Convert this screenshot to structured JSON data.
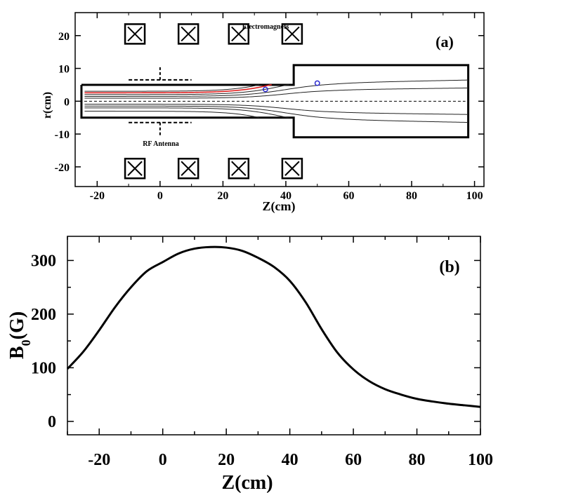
{
  "chart_data": [
    {
      "panel_label": "(a)",
      "type": "diagram",
      "xlabel": "Z(cm)",
      "ylabel": "r(cm)",
      "xlim": [
        -27,
        103
      ],
      "ylim": [
        -26,
        27
      ],
      "xticks": [
        -20,
        0,
        20,
        40,
        60,
        80,
        100
      ],
      "xtick_labels": [
        "-20",
        "0",
        "20",
        "40",
        "60",
        "80",
        "100"
      ],
      "yticks": [
        -20,
        -10,
        0,
        10,
        20
      ],
      "ytick_labels": [
        "-20",
        "-10",
        "0",
        "10",
        "20"
      ],
      "annotations": {
        "magnets": "Electromagnets",
        "antenna": "RF Antenna"
      },
      "electromagnets_z": [
        -8,
        9,
        25,
        42
      ],
      "electromagnet_r": [
        20.5,
        -20.5
      ],
      "chamber_outline_zr": [
        [
          -25,
          5
        ],
        [
          42.5,
          5
        ],
        [
          42.5,
          11
        ],
        [
          98,
          11
        ],
        [
          98,
          -11
        ],
        [
          42.5,
          -11
        ],
        [
          42.5,
          -5
        ],
        [
          -25,
          -5
        ]
      ],
      "antenna": {
        "z_range": [
          -10,
          10
        ],
        "r": 6.5,
        "lead_r": 10.5
      },
      "field_line_r0": [
        1.0,
        1.6,
        2.2,
        2.8,
        3.3
      ],
      "highlighted_line_r0": 2.8,
      "markers_zr": [
        [
          33.5,
          3.6
        ],
        [
          50,
          5.5
        ]
      ]
    },
    {
      "panel_label": "(b)",
      "type": "line",
      "xlabel": "Z(cm)",
      "ylabel": "B0(G)",
      "xlim": [
        -30,
        100
      ],
      "ylim": [
        -25,
        345
      ],
      "xticks": [
        -20,
        0,
        20,
        40,
        60,
        80,
        100
      ],
      "xtick_labels": [
        "-20",
        "0",
        "20",
        "40",
        "60",
        "80",
        "100"
      ],
      "yticks": [
        0,
        100,
        200,
        300
      ],
      "ytick_labels": [
        "0",
        "100",
        "200",
        "300"
      ],
      "series": [
        {
          "name": "B0",
          "x": [
            -30,
            -25,
            -20,
            -15,
            -10,
            -5,
            0,
            5,
            10,
            15,
            20,
            25,
            30,
            35,
            40,
            45,
            50,
            55,
            60,
            65,
            70,
            75,
            80,
            85,
            90,
            95,
            100
          ],
          "y": [
            98,
            130,
            170,
            213,
            250,
            280,
            297,
            313,
            322,
            325,
            324,
            318,
            305,
            288,
            262,
            222,
            172,
            128,
            97,
            75,
            60,
            50,
            42,
            37,
            33,
            30,
            27
          ]
        }
      ]
    }
  ]
}
